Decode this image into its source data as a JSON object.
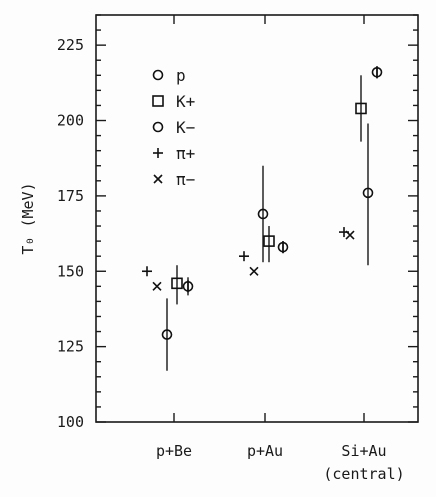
{
  "chart_data": {
    "type": "scatter",
    "title": "",
    "xlabel": "",
    "ylabel": "T₀ (MeV)",
    "ylim": [
      100,
      235
    ],
    "yticks": [
      100,
      125,
      150,
      175,
      200,
      225
    ],
    "grid": false,
    "legend_position": "top-left",
    "categories": [
      {
        "lines": [
          "p+Be"
        ]
      },
      {
        "lines": [
          "p+Au"
        ]
      },
      {
        "lines": [
          "Si+Au",
          "(central)"
        ]
      }
    ],
    "series": [
      {
        "name": "p",
        "marker": "circle-bar",
        "points": [
          {
            "category": 0,
            "y": 145,
            "err_low": 142,
            "err_high": 148
          },
          {
            "category": 1,
            "y": 158,
            "err_low": 156,
            "err_high": 160
          },
          {
            "category": 2,
            "y": 216,
            "err_low": 214,
            "err_high": 218
          }
        ]
      },
      {
        "name": "K+",
        "marker": "square",
        "points": [
          {
            "category": 0,
            "y": 146,
            "err_low": 139,
            "err_high": 152
          },
          {
            "category": 1,
            "y": 160,
            "err_low": 153,
            "err_high": 165
          },
          {
            "category": 2,
            "y": 204,
            "err_low": 193,
            "err_high": 215
          }
        ]
      },
      {
        "name": "K−",
        "marker": "circle",
        "points": [
          {
            "category": 0,
            "y": 129,
            "err_low": 117,
            "err_high": 141
          },
          {
            "category": 1,
            "y": 169,
            "err_low": 153,
            "err_high": 185
          },
          {
            "category": 2,
            "y": 176,
            "err_low": 152,
            "err_high": 199
          }
        ]
      },
      {
        "name": "π+",
        "marker": "plus",
        "points": [
          {
            "category": 0,
            "y": 150
          },
          {
            "category": 1,
            "y": 155
          },
          {
            "category": 2,
            "y": 163
          }
        ]
      },
      {
        "name": "π−",
        "marker": "cross",
        "points": [
          {
            "category": 0,
            "y": 145
          },
          {
            "category": 1,
            "y": 150
          },
          {
            "category": 2,
            "y": 162
          }
        ]
      }
    ]
  }
}
